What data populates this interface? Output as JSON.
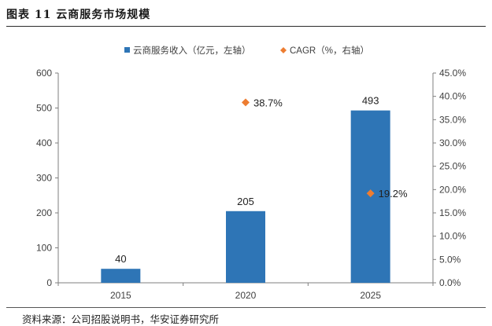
{
  "figure_title": "图表 11  云商服务市场规模",
  "source": "资料来源：公司招股说明书，华安证券研究所",
  "colors": {
    "bar": "#2e75b6",
    "marker": "#ed7d31",
    "axis": "#7f7f7f",
    "text": "#404040"
  },
  "chart_data": {
    "type": "bar",
    "categories": [
      "2015",
      "2020",
      "2025"
    ],
    "series": [
      {
        "name": "云商服务收入（亿元，左轴）",
        "kind": "bar",
        "axis": "left",
        "values": [
          40,
          205,
          493
        ],
        "labels": [
          "40",
          "205",
          "493"
        ],
        "marker": "square-icon"
      },
      {
        "name": "CAGR（%，右轴）",
        "kind": "scatter",
        "axis": "right",
        "points": [
          {
            "x": 1.5,
            "y": 38.7,
            "label": "38.7%"
          },
          {
            "x": 2.5,
            "y": 19.2,
            "label": "19.2%"
          }
        ],
        "marker": "diamond-icon"
      }
    ],
    "ylim_left": [
      0,
      600
    ],
    "yticks_left": [
      "0",
      "100",
      "200",
      "300",
      "400",
      "500",
      "600"
    ],
    "ylim_right": [
      0,
      45
    ],
    "yticks_right": [
      "0.0%",
      "5.0%",
      "10.0%",
      "15.0%",
      "20.0%",
      "25.0%",
      "30.0%",
      "35.0%",
      "40.0%",
      "45.0%"
    ],
    "grid": false,
    "legend_position": "top-center"
  }
}
